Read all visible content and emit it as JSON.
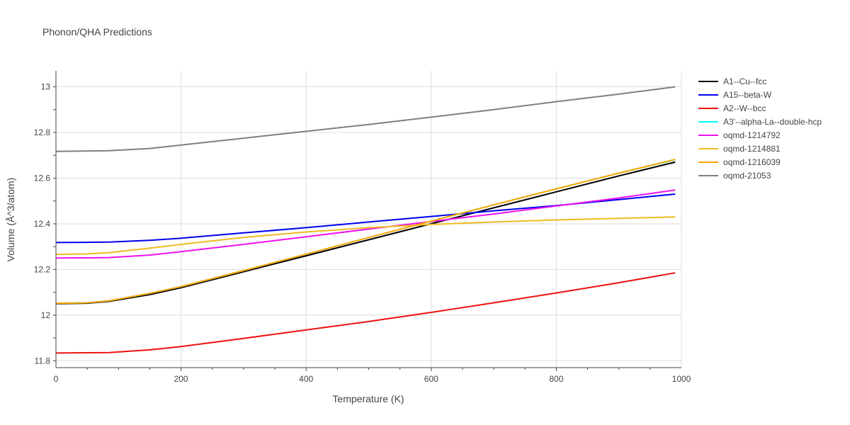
{
  "chart_data": {
    "type": "line",
    "title": "Phonon/QHA Predictions",
    "xlabel": "Temperature (K)",
    "ylabel": "Volume (Å^3/atom)",
    "xlim": [
      0,
      1000
    ],
    "ylim": [
      11.77,
      13.07
    ],
    "x_ticks": [
      0,
      200,
      400,
      600,
      800,
      1000
    ],
    "x_tick_labels": [
      "0",
      "200",
      "400",
      "600",
      "800",
      "1000"
    ],
    "y_ticks": [
      11.8,
      12.0,
      12.2,
      12.4,
      12.6,
      12.8,
      13.0
    ],
    "y_tick_labels": [
      "11.8",
      "12",
      "12.2",
      "12.4",
      "12.6",
      "12.8",
      "13"
    ],
    "grid": true,
    "legend_position": "right",
    "x": [
      0,
      50,
      85,
      150,
      200,
      300,
      400,
      500,
      600,
      700,
      800,
      900,
      990
    ],
    "series": [
      {
        "name": "A1--Cu--fcc",
        "color": "#000000",
        "values": [
          12.05,
          12.052,
          12.06,
          12.09,
          12.12,
          12.19,
          12.26,
          12.33,
          12.4,
          12.47,
          12.54,
          12.61,
          12.67
        ]
      },
      {
        "name": "A15--beta-W",
        "color": "#0000ee",
        "values": [
          12.318,
          12.319,
          12.32,
          12.328,
          12.337,
          12.36,
          12.383,
          12.408,
          12.432,
          12.457,
          12.48,
          12.506,
          12.53
        ]
      },
      {
        "name": "A2--W--bcc",
        "color": "#ee1111",
        "values": [
          11.834,
          11.835,
          11.836,
          11.848,
          11.862,
          11.898,
          11.935,
          11.972,
          12.012,
          12.054,
          12.097,
          12.142,
          12.185
        ]
      },
      {
        "name": "A3'--alpha-La--double-hcp",
        "color": "#00ffff",
        "values": [
          12.052,
          12.054,
          12.063,
          12.095,
          12.125,
          12.195,
          12.267,
          12.34,
          12.412,
          12.483,
          12.553,
          12.622,
          12.68
        ]
      },
      {
        "name": "oqmd-1214792",
        "color": "#ee11ee",
        "values": [
          12.25,
          12.251,
          12.252,
          12.263,
          12.278,
          12.31,
          12.343,
          12.377,
          12.41,
          12.443,
          12.478,
          12.513,
          12.548
        ]
      },
      {
        "name": "oqmd-1214881",
        "color": "#eebb22",
        "values": [
          12.266,
          12.268,
          12.274,
          12.293,
          12.31,
          12.34,
          12.364,
          12.383,
          12.397,
          12.408,
          12.417,
          12.424,
          12.43
        ]
      },
      {
        "name": "oqmd-1216039",
        "color": "#ffa500",
        "values": [
          12.052,
          12.054,
          12.063,
          12.095,
          12.125,
          12.195,
          12.267,
          12.34,
          12.412,
          12.483,
          12.553,
          12.622,
          12.682
        ]
      },
      {
        "name": "oqmd-21053",
        "color": "#808080",
        "values": [
          12.717,
          12.719,
          12.72,
          12.73,
          12.745,
          12.775,
          12.805,
          12.835,
          12.867,
          12.9,
          12.935,
          12.968,
          13.0
        ]
      }
    ]
  }
}
